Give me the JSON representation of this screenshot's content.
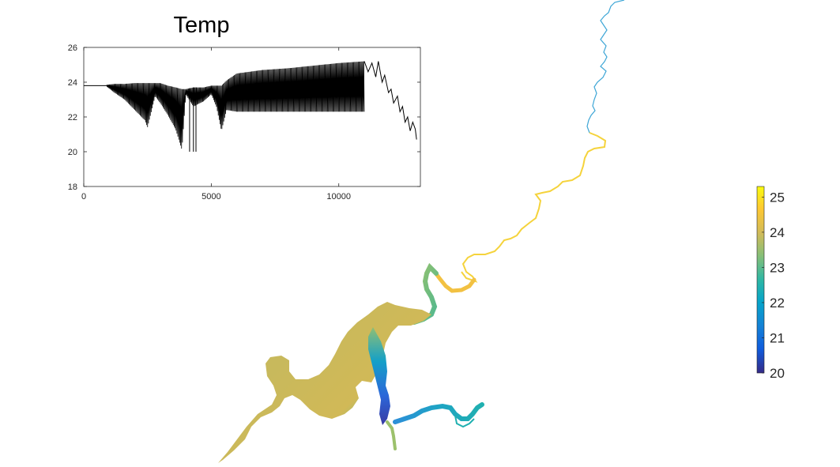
{
  "chart_data": [
    {
      "type": "line",
      "title": "Temp",
      "xlabel": "",
      "ylabel": "",
      "xlim": [
        0,
        13200
      ],
      "ylim": [
        18,
        26
      ],
      "xticks": [
        "0",
        "5000",
        "10000"
      ],
      "xtick_values": [
        0,
        5000,
        10000
      ],
      "yticks": [
        "18",
        "20",
        "22",
        "24",
        "26"
      ],
      "ytick_values": [
        18,
        20,
        22,
        24,
        26
      ],
      "series_color": "#000000",
      "baseline_segment": {
        "x": [
          0,
          900
        ],
        "y": [
          23.8,
          23.8
        ]
      },
      "envelope": [
        {
          "x": 900,
          "upper": 23.85,
          "lower": 23.75
        },
        {
          "x": 1200,
          "upper": 23.9,
          "lower": 23.4
        },
        {
          "x": 1600,
          "upper": 23.9,
          "lower": 23.0
        },
        {
          "x": 2000,
          "upper": 23.95,
          "lower": 22.4
        },
        {
          "x": 2400,
          "upper": 23.95,
          "lower": 21.8
        },
        {
          "x": 2500,
          "upper": 23.95,
          "lower": 21.4
        },
        {
          "x": 2800,
          "upper": 23.95,
          "lower": 23.2
        },
        {
          "x": 3000,
          "upper": 23.95,
          "lower": 22.8
        },
        {
          "x": 3300,
          "upper": 23.8,
          "lower": 22.1
        },
        {
          "x": 3600,
          "upper": 23.7,
          "lower": 21.3
        },
        {
          "x": 3850,
          "upper": 23.6,
          "lower": 20.1
        },
        {
          "x": 4000,
          "upper": 23.6,
          "lower": 23.3
        },
        {
          "x": 4300,
          "upper": 23.7,
          "lower": 22.6
        },
        {
          "x": 4700,
          "upper": 23.7,
          "lower": 22.9
        },
        {
          "x": 5000,
          "upper": 23.8,
          "lower": 23.3
        },
        {
          "x": 5200,
          "upper": 23.8,
          "lower": 22.6
        },
        {
          "x": 5400,
          "upper": 23.8,
          "lower": 21.2
        },
        {
          "x": 5600,
          "upper": 24.1,
          "lower": 22.4
        },
        {
          "x": 6000,
          "upper": 24.5,
          "lower": 22.3
        },
        {
          "x": 7000,
          "upper": 24.7,
          "lower": 22.3
        },
        {
          "x": 8000,
          "upper": 24.8,
          "lower": 22.3
        },
        {
          "x": 9000,
          "upper": 24.95,
          "lower": 22.3
        },
        {
          "x": 10000,
          "upper": 25.1,
          "lower": 22.3
        },
        {
          "x": 11000,
          "upper": 25.2,
          "lower": 22.3
        }
      ],
      "spikes": [
        {
          "x": 4150,
          "y": 20.0
        },
        {
          "x": 4300,
          "y": 20.0
        },
        {
          "x": 4400,
          "y": 20.0
        }
      ],
      "tail": {
        "x": [
          11000,
          11150,
          11300,
          11450,
          11550,
          11700,
          11800,
          11950,
          12050,
          12150,
          12300,
          12400,
          12500,
          12600,
          12700,
          12800,
          12900,
          13000,
          13050
        ],
        "y": [
          25.2,
          24.6,
          25.1,
          24.3,
          25.2,
          24.0,
          24.4,
          23.4,
          23.6,
          22.8,
          23.2,
          22.3,
          22.6,
          21.7,
          22.0,
          21.2,
          21.7,
          21.3,
          20.7
        ]
      }
    },
    {
      "type": "heatmap",
      "colorbar": {
        "ticks": [
          "20",
          "21",
          "22",
          "23",
          "24",
          "25"
        ],
        "tick_values": [
          20,
          21,
          22,
          23,
          24,
          25
        ],
        "range": [
          20,
          25.3
        ],
        "colormap": [
          "#352a87",
          "#0f5cdd",
          "#1481d6",
          "#06a4ca",
          "#2eb7a4",
          "#87bf77",
          "#d1bb59",
          "#fec832",
          "#f9fb0e"
        ]
      },
      "river_segments": [
        {
          "id": "upper",
          "value": 21.8,
          "color": "#3ea6d6"
        },
        {
          "id": "yellow-reach",
          "value": 25.0,
          "color": "#f5d33c"
        },
        {
          "id": "orange-bend",
          "value": 24.7,
          "color": "#f2c142"
        },
        {
          "id": "green-loop",
          "value": 23.0,
          "color": "#78bc76"
        },
        {
          "id": "lake-body",
          "value": 23.8,
          "color": "#c8b95c"
        },
        {
          "id": "lake-east-arm",
          "value": 21.0,
          "color": "#2b78d8"
        },
        {
          "id": "lake-channel",
          "value": 20.3,
          "color": "#3a37a8"
        },
        {
          "id": "east-tributary",
          "value": 21.9,
          "color": "#1ea4c4"
        },
        {
          "id": "southwest-outlet",
          "value": 23.9,
          "color": "#c9b85c"
        }
      ]
    }
  ]
}
